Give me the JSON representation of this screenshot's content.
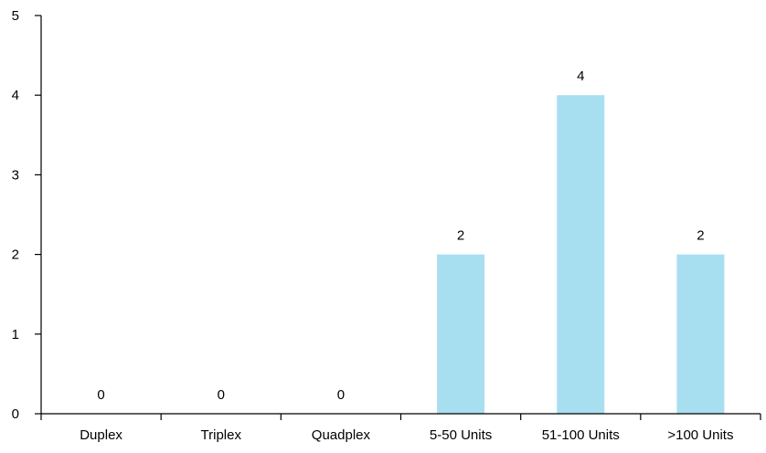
{
  "chart_data": {
    "type": "bar",
    "categories": [
      "Duplex",
      "Triplex",
      "Quadplex",
      "5-50 Units",
      "51-100 Units",
      ">100 Units"
    ],
    "values": [
      0,
      0,
      0,
      2,
      4,
      2
    ],
    "data_labels": [
      "0",
      "0",
      "0",
      "2",
      "4",
      "2"
    ],
    "y_ticks": [
      "0",
      "1",
      "2",
      "3",
      "4",
      "5"
    ],
    "ylim": [
      0,
      5
    ],
    "title": "",
    "xlabel": "",
    "ylabel": "",
    "grid": false,
    "legend": "none",
    "bar_color": "#a8dff0",
    "axis_color": "#000000"
  }
}
